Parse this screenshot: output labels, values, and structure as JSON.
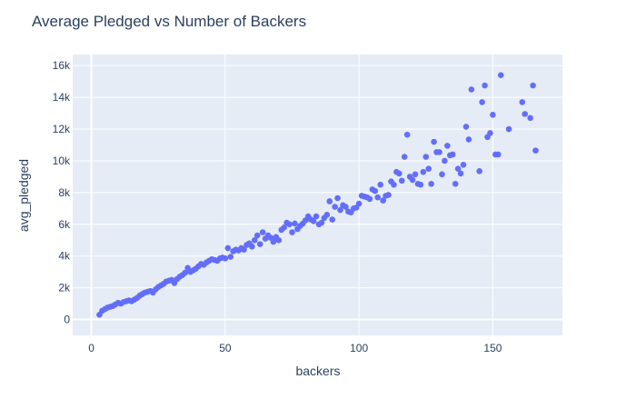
{
  "chart_data": {
    "type": "scatter",
    "title": "Average Pledged vs Number of Backers",
    "xlabel": "backers",
    "ylabel": "avg_pledged",
    "xlim": [
      -7,
      176
    ],
    "ylim": [
      -1000,
      16700
    ],
    "x_ticks": [
      0,
      50,
      100,
      150
    ],
    "x_tick_labels": [
      "0",
      "50",
      "100",
      "150"
    ],
    "y_ticks": [
      0,
      2000,
      4000,
      6000,
      8000,
      10000,
      12000,
      14000,
      16000
    ],
    "y_tick_labels": [
      "0",
      "2k",
      "4k",
      "6k",
      "8k",
      "10k",
      "12k",
      "14k",
      "16k"
    ],
    "grid": true,
    "colors": {
      "marker": "#636efa",
      "plot_bg": "#e5ecf6",
      "grid": "#ffffff",
      "text": "#2a3f5f"
    },
    "series": [
      {
        "points": [
          [
            3,
            300
          ],
          [
            4,
            550
          ],
          [
            5,
            650
          ],
          [
            6,
            750
          ],
          [
            7,
            800
          ],
          [
            8,
            850
          ],
          [
            9,
            950
          ],
          [
            10,
            1050
          ],
          [
            11,
            1000
          ],
          [
            12,
            1100
          ],
          [
            13,
            1150
          ],
          [
            14,
            1200
          ],
          [
            15,
            1150
          ],
          [
            16,
            1250
          ],
          [
            17,
            1350
          ],
          [
            18,
            1500
          ],
          [
            19,
            1600
          ],
          [
            20,
            1700
          ],
          [
            21,
            1750
          ],
          [
            22,
            1800
          ],
          [
            23,
            1700
          ],
          [
            24,
            1900
          ],
          [
            25,
            2050
          ],
          [
            26,
            2150
          ],
          [
            27,
            2250
          ],
          [
            28,
            2400
          ],
          [
            29,
            2450
          ],
          [
            30,
            2500
          ],
          [
            31,
            2300
          ],
          [
            32,
            2550
          ],
          [
            33,
            2700
          ],
          [
            34,
            2800
          ],
          [
            35,
            2950
          ],
          [
            36,
            3250
          ],
          [
            37,
            3000
          ],
          [
            38,
            3100
          ],
          [
            39,
            3200
          ],
          [
            40,
            3350
          ],
          [
            41,
            3500
          ],
          [
            42,
            3450
          ],
          [
            43,
            3600
          ],
          [
            44,
            3700
          ],
          [
            45,
            3800
          ],
          [
            46,
            3750
          ],
          [
            47,
            3700
          ],
          [
            48,
            3850
          ],
          [
            49,
            3900
          ],
          [
            50,
            3850
          ],
          [
            51,
            4500
          ],
          [
            52,
            3950
          ],
          [
            53,
            4300
          ],
          [
            54,
            4400
          ],
          [
            55,
            4350
          ],
          [
            56,
            4500
          ],
          [
            57,
            4400
          ],
          [
            58,
            4700
          ],
          [
            59,
            4800
          ],
          [
            60,
            4600
          ],
          [
            61,
            5000
          ],
          [
            62,
            5300
          ],
          [
            63,
            4750
          ],
          [
            64,
            5500
          ],
          [
            65,
            5100
          ],
          [
            66,
            5300
          ],
          [
            67,
            5150
          ],
          [
            68,
            4900
          ],
          [
            69,
            5200
          ],
          [
            70,
            5000
          ],
          [
            71,
            5650
          ],
          [
            72,
            5800
          ],
          [
            73,
            6100
          ],
          [
            74,
            6000
          ],
          [
            75,
            5500
          ],
          [
            76,
            6050
          ],
          [
            77,
            5700
          ],
          [
            78,
            5900
          ],
          [
            79,
            6050
          ],
          [
            80,
            6250
          ],
          [
            81,
            6500
          ],
          [
            82,
            6300
          ],
          [
            83,
            6200
          ],
          [
            84,
            6500
          ],
          [
            85,
            6000
          ],
          [
            86,
            6100
          ],
          [
            87,
            6400
          ],
          [
            88,
            6600
          ],
          [
            89,
            7450
          ],
          [
            90,
            6300
          ],
          [
            91,
            7100
          ],
          [
            92,
            7650
          ],
          [
            93,
            6900
          ],
          [
            94,
            7200
          ],
          [
            95,
            7100
          ],
          [
            96,
            6800
          ],
          [
            97,
            6750
          ],
          [
            98,
            7000
          ],
          [
            99,
            7050
          ],
          [
            100,
            7300
          ],
          [
            101,
            7800
          ],
          [
            102,
            7750
          ],
          [
            103,
            7700
          ],
          [
            104,
            7600
          ],
          [
            105,
            8200
          ],
          [
            106,
            8100
          ],
          [
            107,
            7700
          ],
          [
            108,
            8500
          ],
          [
            109,
            7500
          ],
          [
            110,
            7800
          ],
          [
            111,
            7850
          ],
          [
            112,
            8700
          ],
          [
            113,
            8500
          ],
          [
            114,
            9300
          ],
          [
            115,
            9200
          ],
          [
            116,
            8750
          ],
          [
            117,
            10250
          ],
          [
            118,
            11650
          ],
          [
            119,
            9000
          ],
          [
            120,
            8800
          ],
          [
            121,
            9150
          ],
          [
            122,
            8550
          ],
          [
            123,
            8500
          ],
          [
            124,
            9300
          ],
          [
            125,
            10250
          ],
          [
            126,
            9500
          ],
          [
            127,
            8550
          ],
          [
            128,
            11200
          ],
          [
            129,
            10550
          ],
          [
            130,
            10550
          ],
          [
            131,
            9150
          ],
          [
            132,
            10000
          ],
          [
            133,
            10950
          ],
          [
            134,
            10350
          ],
          [
            135,
            10400
          ],
          [
            136,
            8550
          ],
          [
            137,
            9500
          ],
          [
            138,
            9200
          ],
          [
            139,
            9750
          ],
          [
            140,
            12150
          ],
          [
            141,
            11350
          ],
          [
            142,
            14500
          ],
          [
            145,
            9350
          ],
          [
            146,
            13700
          ],
          [
            147,
            14750
          ],
          [
            148,
            11500
          ],
          [
            149,
            11750
          ],
          [
            150,
            12900
          ],
          [
            151,
            10400
          ],
          [
            152,
            10400
          ],
          [
            153,
            15400
          ],
          [
            156,
            12000
          ],
          [
            161,
            13700
          ],
          [
            162,
            12950
          ],
          [
            164,
            12700
          ],
          [
            165,
            14750
          ],
          [
            166,
            10650
          ]
        ]
      }
    ]
  }
}
